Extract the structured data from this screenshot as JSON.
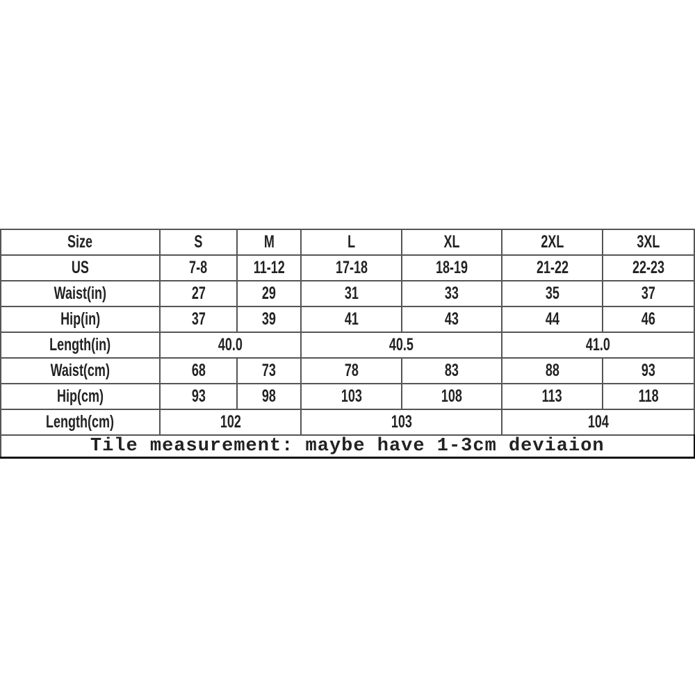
{
  "size_chart": {
    "header": [
      "Size",
      "S",
      "M",
      "L",
      "XL",
      "2XL",
      "3XL"
    ],
    "rows": [
      {
        "label": "US",
        "cells": [
          {
            "v": "7-8",
            "span": 1
          },
          {
            "v": "11-12",
            "span": 1
          },
          {
            "v": "17-18",
            "span": 1
          },
          {
            "v": "18-19",
            "span": 1
          },
          {
            "v": "21-22",
            "span": 1
          },
          {
            "v": "22-23",
            "span": 1
          }
        ]
      },
      {
        "label": "Waist(in)",
        "cells": [
          {
            "v": "27",
            "span": 1
          },
          {
            "v": "29",
            "span": 1
          },
          {
            "v": "31",
            "span": 1
          },
          {
            "v": "33",
            "span": 1
          },
          {
            "v": "35",
            "span": 1
          },
          {
            "v": "37",
            "span": 1
          }
        ]
      },
      {
        "label": "Hip(in)",
        "cells": [
          {
            "v": "37",
            "span": 1
          },
          {
            "v": "39",
            "span": 1
          },
          {
            "v": "41",
            "span": 1
          },
          {
            "v": "43",
            "span": 1
          },
          {
            "v": "44",
            "span": 1
          },
          {
            "v": "46",
            "span": 1
          }
        ]
      },
      {
        "label": "Length(in)",
        "cells": [
          {
            "v": "40.0",
            "span": 2
          },
          {
            "v": "40.5",
            "span": 2
          },
          {
            "v": "41.0",
            "span": 2
          }
        ]
      },
      {
        "label": "Waist(cm)",
        "cells": [
          {
            "v": "68",
            "span": 1
          },
          {
            "v": "73",
            "span": 1
          },
          {
            "v": "78",
            "span": 1
          },
          {
            "v": "83",
            "span": 1
          },
          {
            "v": "88",
            "span": 1
          },
          {
            "v": "93",
            "span": 1
          }
        ]
      },
      {
        "label": "Hip(cm)",
        "cells": [
          {
            "v": "93",
            "span": 1
          },
          {
            "v": "98",
            "span": 1
          },
          {
            "v": "103",
            "span": 1
          },
          {
            "v": "108",
            "span": 1
          },
          {
            "v": "113",
            "span": 1
          },
          {
            "v": "118",
            "span": 1
          }
        ]
      },
      {
        "label": "Length(cm)",
        "cells": [
          {
            "v": "102",
            "span": 2
          },
          {
            "v": "103",
            "span": 2
          },
          {
            "v": "104",
            "span": 2
          }
        ]
      }
    ],
    "note": "Tile measurement: maybe have 1-3cm deviaion"
  }
}
